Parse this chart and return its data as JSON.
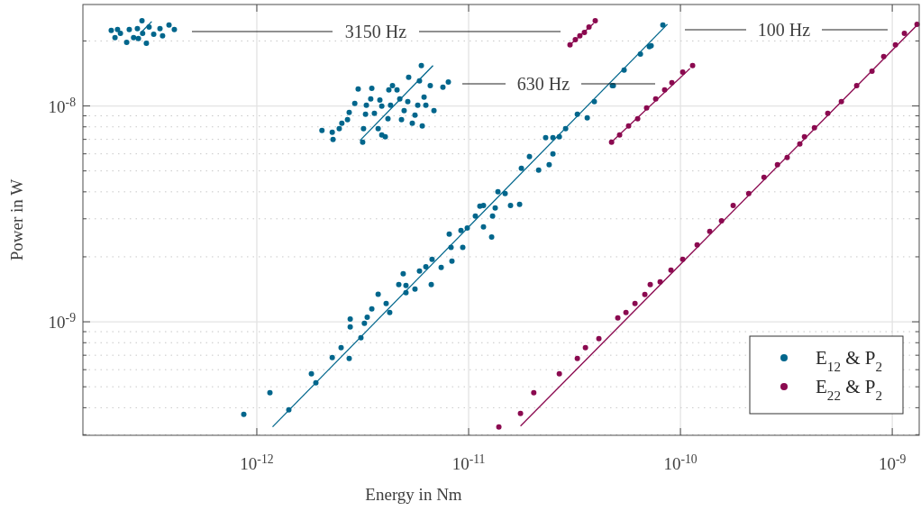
{
  "chart_data": {
    "type": "scatter",
    "xlabel": "Energy in Nm",
    "ylabel": "Power in W",
    "log": "xy",
    "grid": true,
    "legend": "bottom right",
    "marker": "circle",
    "xlim": [
      1.51e-13,
      1.34e-09
    ],
    "ylim": [
      2.98e-10,
      2.95e-08
    ],
    "xticks": [
      {
        "value": 1e-12,
        "label": "10$^{-12}$"
      },
      {
        "value": 1e-11,
        "label": "10$^{-11}$"
      },
      {
        "value": 1e-10,
        "label": "10$^{-10}$"
      },
      {
        "value": 1e-09,
        "label": "10$^{-9}$"
      }
    ],
    "yticks": [
      {
        "value": 3e-10,
        "label": null
      },
      {
        "value": 4e-10,
        "label": null
      },
      {
        "value": 5e-10,
        "label": null
      },
      {
        "value": 6e-10,
        "label": null
      },
      {
        "value": 7e-10,
        "label": null
      },
      {
        "value": 8e-10,
        "label": null
      },
      {
        "value": 9e-10,
        "label": null
      },
      {
        "value": 1e-09,
        "label": "10$^{-9}$"
      },
      {
        "value": 2e-09,
        "label": null
      },
      {
        "value": 3e-09,
        "label": null
      },
      {
        "value": 4e-09,
        "label": null
      },
      {
        "value": 5e-09,
        "label": null
      },
      {
        "value": 6e-09,
        "label": null
      },
      {
        "value": 7e-09,
        "label": null
      },
      {
        "value": 8e-09,
        "label": null
      },
      {
        "value": 9e-09,
        "label": null
      },
      {
        "value": 1e-08,
        "label": "10$^{-8}$"
      },
      {
        "value": 2e-08,
        "label": null
      }
    ],
    "annotations": [
      "3150 Hz",
      "630 Hz",
      "100 Hz"
    ],
    "series": [
      {
        "name": "E$_{12}$ & P$_{2}$",
        "color": "#00668c",
        "x": [
          8.68e-13,
          1.153e-12,
          1.81e-12,
          2.27e-12,
          2.5e-12,
          2.73e-12,
          2.76e-12,
          2.76e-12,
          3.22e-12,
          3.32e-12,
          3.49e-12,
          3.74e-12,
          4.08e-12,
          4.24e-12,
          4.68e-12,
          4.91e-12,
          5.06e-12,
          5.58e-12,
          5.86e-12,
          6.28e-12,
          6.72e-12,
          6.66e-12,
          7.42e-12,
          8.1e-12,
          8.34e-12,
          9.38e-12,
          9.2e-12,
          9.85e-12,
          1.076e-11,
          1.13e-11,
          1.175e-11,
          1.175e-11,
          1.284e-11,
          1.297e-11,
          1.335e-11,
          1.375e-11,
          1.577e-11,
          1.74e-11,
          1.774e-11,
          1.937e-11,
          2.14e-11,
          2.4e-11,
          2.5e-11,
          2.31e-11,
          8.26e-11,
          7.27e-11,
          6.47e-11,
          5.42e-11,
          4.77e-11,
          3.92e-11,
          3.63e-11,
          3.26e-11,
          2.87e-11,
          2.5e-11,
          1.416e-12,
          1.9e-12,
          3.1e-12,
          5.06e-12,
          8.26e-12,
          1.487e-11,
          2.68e-11,
          4.82e-11,
          7.13e-11,
          2.03e-12,
          2.29e-12,
          2.27e-12,
          2.45e-12,
          2.52e-12,
          2.68e-12,
          2.73e-12,
          2.9e-12,
          3.01e-12,
          3.16e-12,
          3.26e-12,
          3.29e-12,
          3.49e-12,
          3.45e-12,
          3.59e-12,
          3.74e-12,
          3.81e-12,
          3.89e-12,
          4.04e-12,
          4.16e-12,
          4.2e-12,
          4.28e-12,
          4.37e-12,
          4.59e-12,
          4.73e-12,
          4.82e-12,
          4.96e-12,
          5.16e-12,
          5.21e-12,
          5.42e-12,
          5.58e-12,
          5.75e-12,
          5.86e-12,
          5.98e-12,
          6.04e-12,
          6.16e-12,
          6.28e-12,
          6.59e-12,
          6.86e-12,
          7.56e-12,
          8.02e-12,
          3.19e-12,
          3.89e-12,
          2.055e-13,
          2.14e-13,
          2.27e-13,
          2.43e-13,
          2.5e-13,
          2.62e-13,
          2.73e-13,
          2.87e-13,
          2.89e-13,
          3.01e-13,
          3.1e-13,
          3.26e-13,
          3.49e-13,
          3.59e-13,
          3.85e-13,
          4.08e-13,
          2.2e-13,
          2.76e-13
        ],
        "values": [
          3.73e-10,
          4.69e-10,
          5.74e-10,
          6.83e-10,
          7.59e-10,
          6.76e-10,
          1.03e-09,
          9.47e-10,
          9.84e-10,
          1.05e-09,
          1.147e-09,
          1.34e-09,
          1.215e-09,
          1.104e-09,
          1.487e-09,
          1.669e-09,
          1.473e-09,
          1.418e-09,
          1.718e-09,
          1.8e-09,
          1.946e-09,
          1.487e-09,
          1.785e-09,
          2.55e-09,
          1.91e-09,
          2.21e-09,
          2.65e-09,
          2.72e-09,
          3.09e-09,
          3.43e-09,
          3.46e-09,
          2.75e-09,
          2.47e-09,
          3.09e-09,
          3.37e-09,
          4e-09,
          3.46e-09,
          3.5e-09,
          5.14e-09,
          5.82e-09,
          5.04e-09,
          5.34e-09,
          5.99e-09,
          7.12e-09,
          2.37e-08,
          1.9e-08,
          1.74e-08,
          1.465e-08,
          1.243e-08,
          1.046e-08,
          8.8e-09,
          9.15e-09,
          7.84e-09,
          7.12e-09,
          3.91e-10,
          5.22e-10,
          8.43e-10,
          1.364e-09,
          2.21e-09,
          3.93e-09,
          7.19e-09,
          1.243e-08,
          1.88e-08,
          7.69e-09,
          6.99e-09,
          7.55e-09,
          7.84e-09,
          8.31e-09,
          8.63e-09,
          9.32e-09,
          1.026e-08,
          1.197e-08,
          6.79e-09,
          9.15e-09,
          1.007e-08,
          1.208e-08,
          1.077e-08,
          9.23e-09,
          7.84e-09,
          1.066e-08,
          9.97e-09,
          7.19e-09,
          8.72e-09,
          1.186e-08,
          1.007e-08,
          1.243e-08,
          1.186e-08,
          1.077e-08,
          8.63e-09,
          9.5e-09,
          1.046e-08,
          1.356e-08,
          8.31e-09,
          9.06e-09,
          1.007e-08,
          1.305e-08,
          1.537e-08,
          8.07e-09,
          1.098e-08,
          1.007e-08,
          1.243e-08,
          9.5e-09,
          1.22e-08,
          1.292e-08,
          7.84e-09,
          7.33e-09,
          2.24e-08,
          2.07e-08,
          2.17e-08,
          1.97e-08,
          2.26e-08,
          2.07e-08,
          2.28e-08,
          2.48e-08,
          2.17e-08,
          1.95e-08,
          2.32e-08,
          2.15e-08,
          2.28e-08,
          2.11e-08,
          2.37e-08,
          2.26e-08,
          2.26e-08,
          2.05e-08
        ]
      },
      {
        "name": "E$_{22}$ & P$_{2}$",
        "color": "#8b0a50",
        "x": [
          1.389e-11,
          1.757e-11,
          2.03e-11,
          2.68e-11,
          3.26e-11,
          3.56e-11,
          4.12e-11,
          5.06e-11,
          5.53e-11,
          6.1e-11,
          6.79e-11,
          7.2e-11,
          8.02e-11,
          9.02e-11,
          1.025e-10,
          1.199e-10,
          1.375e-10,
          1.562e-10,
          1.774e-10,
          2.1e-10,
          2.48e-10,
          2.87e-10,
          3.19e-10,
          3.66e-10,
          3.85e-10,
          4.29e-10,
          4.96e-10,
          5.75e-10,
          6.79e-10,
          8.02e-10,
          9.11e-10,
          1.035e-09,
          1.141e-09,
          1.309e-09,
          4.73e-11,
          5.16e-11,
          5.69e-11,
          6.28e-11,
          6.92e-11,
          7.64e-11,
          8.42e-11,
          9.11e-11,
          1.025e-10,
          1.141e-10,
          3.01e-11,
          3.19e-11,
          3.35e-11,
          3.52e-11,
          3.7e-11,
          3.96e-11
        ],
        "values": [
          3.26e-10,
          3.76e-10,
          4.69e-10,
          5.74e-10,
          6.76e-10,
          7.59e-10,
          8.35e-10,
          1.042e-09,
          1.104e-09,
          1.215e-09,
          1.337e-09,
          1.487e-09,
          1.53e-09,
          1.734e-09,
          1.946e-09,
          2.27e-09,
          2.62e-09,
          2.94e-09,
          3.46e-09,
          3.93e-09,
          4.67e-09,
          5.34e-09,
          5.77e-09,
          6.66e-09,
          7.19e-09,
          7.92e-09,
          9.23e-09,
          1.046e-08,
          1.243e-08,
          1.45e-08,
          1.692e-08,
          1.918e-08,
          2.17e-08,
          2.39e-08,
          6.79e-09,
          7.33e-09,
          8.07e-09,
          8.72e-09,
          9.78e-09,
          1.077e-08,
          1.186e-08,
          1.28e-08,
          1.436e-08,
          1.537e-08,
          1.918e-08,
          2.03e-08,
          2.11e-08,
          2.19e-08,
          2.32e-08,
          2.48e-08
        ]
      },
      {
        "type": "line",
        "marker": "none",
        "color": "#00668c",
        "x": [
          1.187e-12,
          8.68e-11
        ],
        "values": [
          3.26e-10,
          2.39e-08
        ]
      },
      {
        "type": "line",
        "marker": "none",
        "color": "#00668c",
        "x": [
          3.07e-12,
          6.79e-12
        ],
        "values": [
          6.92e-09,
          1.537e-08
        ]
      },
      {
        "type": "line",
        "marker": "none",
        "color": "#00668c",
        "x": [
          2.87e-13,
          3.19e-13
        ],
        "values": [
          2.21e-08,
          2.46e-08
        ]
      },
      {
        "type": "line",
        "marker": "none",
        "color": "#8b0a50",
        "x": [
          1.757e-11,
          1.322e-09
        ],
        "values": [
          3.29e-10,
          2.39e-08
        ]
      },
      {
        "type": "line",
        "marker": "none",
        "color": "#8b0a50",
        "x": [
          4.82e-11,
          1.109e-10
        ],
        "values": [
          6.92e-09,
          1.49e-08
        ]
      },
      {
        "type": "line",
        "marker": "none",
        "color": "#8b0a50",
        "x": [
          3.01e-11,
          3.89e-11
        ],
        "values": [
          1.918e-08,
          2.41e-08
        ]
      }
    ]
  }
}
